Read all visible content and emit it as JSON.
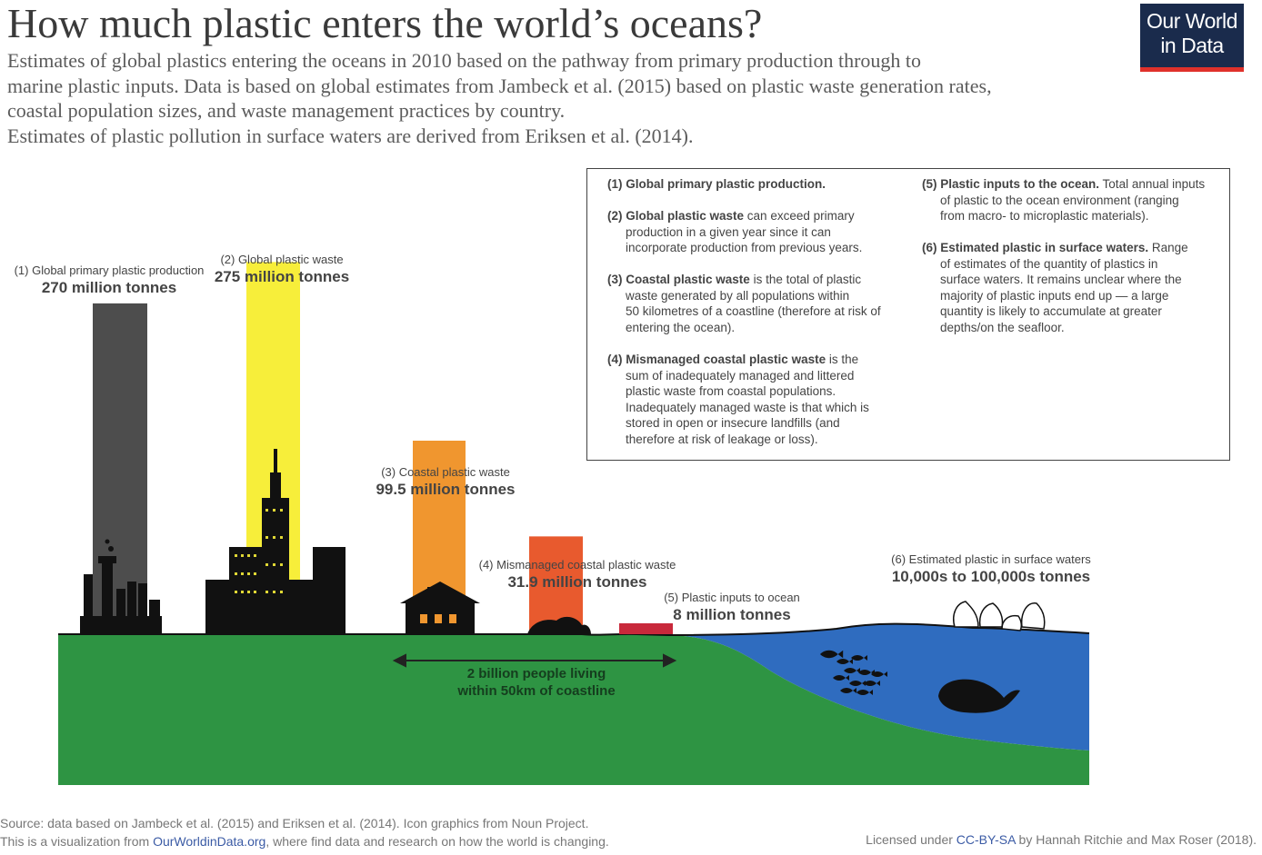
{
  "header": {
    "title": "How much plastic enters the world’s oceans?",
    "subtitle_lines": [
      "Estimates of global plastics entering the oceans in 2010 based on the pathway from primary production through to",
      "marine plastic inputs. Data is based on global estimates from Jambeck et al. (2015) based on plastic waste generation rates,",
      "coastal population sizes, and waste management practices by country.",
      "Estimates of plastic pollution in surface waters are derived from Eriksen et al. (2014)."
    ],
    "logo": {
      "line1": "Our World",
      "line2": "in Data",
      "bg": "#1a2b4c",
      "stripe": "#e0312b"
    }
  },
  "legend": [
    {
      "bold": "(1) Global primary plastic production.",
      "lines": []
    },
    {
      "bold": "(2) Global plastic waste",
      "rest": " can exceed primary",
      "lines": [
        "production in a given year since it can",
        "incorporate production from previous years."
      ]
    },
    {
      "bold": "(3) Coastal plastic waste",
      "rest": " is the total of plastic",
      "lines": [
        "waste generated by all populations within",
        "50 kilometres of a coastline (therefore at risk of",
        "entering the ocean)."
      ]
    },
    {
      "bold": "(4) Mismanaged coastal plastic waste",
      "rest": " is the",
      "lines": [
        "sum of inadequately managed and littered",
        "plastic waste from coastal populations.",
        "Inadequately managed waste is that which is",
        "stored in open or insecure landfills (and",
        "therefore at risk of leakage or loss)."
      ]
    },
    {
      "bold": "(5) Plastic inputs to the ocean.",
      "rest": " Total annual inputs",
      "lines": [
        "of plastic to the ocean environment (ranging",
        "from macro- to microplastic materials)."
      ]
    },
    {
      "bold": "(6) Estimated plastic in surface waters.",
      "rest": " Range",
      "lines": [
        "of estimates of the quantity of plastics in",
        "surface waters. It remains unclear where the",
        "majority of plastic inputs end up — a large",
        "quantity is likely to accumulate at greater",
        "depths/on the seafloor."
      ]
    }
  ],
  "chart_data": {
    "type": "bar",
    "unit": "million tonnes",
    "categories": [
      "(1) Global primary plastic production",
      "(2) Global plastic waste",
      "(3) Coastal plastic waste",
      "(4) Mismanaged coastal plastic waste",
      "(5) Plastic inputs to ocean",
      "(6) Estimated plastic in surface waters"
    ],
    "values": [
      270,
      275,
      99.5,
      31.9,
      8,
      null
    ],
    "value_labels": [
      "270 million tonnes",
      "275 million tonnes",
      "99.5 million tonnes",
      "31.9 million tonnes",
      "8 million tonnes",
      "10,000s to 100,000s tonnes"
    ],
    "colors": [
      "#4d4d4d",
      "#f7ee3a",
      "#f0962f",
      "#e85a2e",
      "#c8293b",
      null
    ],
    "annotation": "2 billion people living within 50km of coastline",
    "annotation_lines": [
      "2 billion people living",
      "within 50km of coastline"
    ]
  },
  "scene_colors": {
    "land": "#2e9443",
    "ocean": "#2f6cbf",
    "icon": "#111111"
  },
  "footer": {
    "source": "Source: data based on Jambeck et al. (2015) and Eriksen et al. (2014). Icon graphics from Noun Project.",
    "viz_prefix": "This is a visualization from ",
    "viz_link": "OurWorldinData.org",
    "viz_suffix": ", where find data and research on how the world is changing.",
    "license_prefix": "Licensed under ",
    "license_link": "CC-BY-SA",
    "license_suffix": " by Hannah Ritchie and Max Roser (2018)."
  }
}
